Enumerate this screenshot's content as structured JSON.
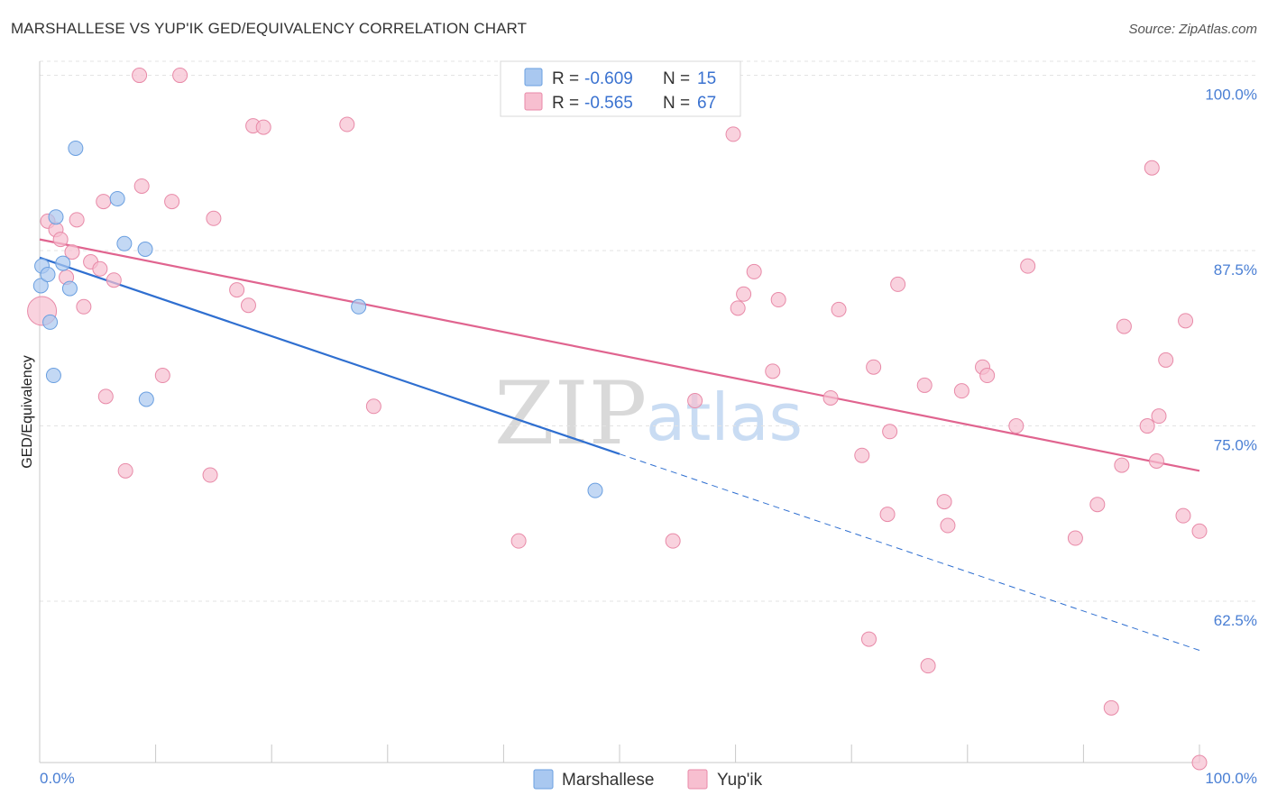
{
  "title": "MARSHALLESE VS YUP'IK GED/EQUIVALENCY CORRELATION CHART",
  "source": "Source: ZipAtlas.com",
  "watermark": {
    "zip": "ZIP",
    "atlas": "atlas"
  },
  "colors": {
    "blue": "#a9c8f0",
    "blue_stroke": "#6a9fe0",
    "blue_line": "#2f6fd0",
    "pink": "#f7bfd0",
    "pink_stroke": "#e88aa8",
    "pink_line": "#e0648f",
    "tick": "#4a7fd4",
    "grid": "#e3e3e3"
  },
  "legend": {
    "rows": [
      {
        "r_label": "R =",
        "r_value": "-0.609",
        "n_label": "N =",
        "n_value": "15"
      },
      {
        "r_label": "R =",
        "r_value": "-0.565",
        "n_label": "N =",
        "n_value": "67"
      }
    ]
  },
  "chart_data": {
    "type": "scatter",
    "title": "MARSHALLESE VS YUP'IK GED/EQUIVALENCY CORRELATION CHART",
    "xlabel": "",
    "ylabel": "GED/Equivalency",
    "xlim": [
      0,
      100
    ],
    "ylim": [
      51,
      101
    ],
    "x_tick_labels": [
      "0.0%",
      "100.0%"
    ],
    "y_ticks": [
      62.5,
      75.0,
      87.5,
      100.0
    ],
    "y_tick_labels": [
      "62.5%",
      "75.0%",
      "87.5%",
      "100.0%"
    ],
    "grid": true,
    "series": [
      {
        "name": "Marshallese",
        "color": "#a9c8f0",
        "points": [
          [
            0.2,
            86.4
          ],
          [
            0.1,
            85.0
          ],
          [
            0.7,
            85.8
          ],
          [
            0.9,
            82.4
          ],
          [
            1.2,
            78.6
          ],
          [
            1.4,
            89.9
          ],
          [
            2.0,
            86.6
          ],
          [
            2.6,
            84.8
          ],
          [
            3.1,
            94.8
          ],
          [
            6.7,
            91.2
          ],
          [
            7.3,
            88.0
          ],
          [
            9.1,
            87.6
          ],
          [
            9.2,
            76.9
          ],
          [
            27.5,
            83.5
          ],
          [
            47.9,
            70.4
          ]
        ],
        "trend": {
          "x0": 0,
          "y0": 87.0,
          "x1": 50,
          "y1": 73.0,
          "dashed_to_x": 100,
          "dashed_to_y": 59.0
        }
      },
      {
        "name": "Yup'ik",
        "color": "#f7bfd0",
        "points": [
          [
            0.2,
            83.2
          ],
          [
            0.7,
            89.6
          ],
          [
            1.4,
            89.0
          ],
          [
            1.8,
            88.3
          ],
          [
            2.3,
            85.6
          ],
          [
            2.8,
            87.4
          ],
          [
            3.2,
            89.7
          ],
          [
            3.8,
            83.5
          ],
          [
            4.4,
            86.7
          ],
          [
            5.2,
            86.2
          ],
          [
            5.5,
            91.0
          ],
          [
            5.7,
            77.1
          ],
          [
            6.4,
            85.4
          ],
          [
            7.4,
            71.8
          ],
          [
            8.6,
            100.0
          ],
          [
            8.8,
            92.1
          ],
          [
            11.4,
            91.0
          ],
          [
            12.1,
            100.0
          ],
          [
            10.6,
            78.6
          ],
          [
            14.7,
            71.5
          ],
          [
            15.0,
            89.8
          ],
          [
            17.0,
            84.7
          ],
          [
            18.0,
            83.6
          ],
          [
            18.4,
            96.4
          ],
          [
            19.3,
            96.3
          ],
          [
            26.5,
            96.5
          ],
          [
            28.8,
            76.4
          ],
          [
            41.3,
            66.8
          ],
          [
            54.6,
            66.8
          ],
          [
            56.5,
            76.8
          ],
          [
            59.8,
            95.8
          ],
          [
            60.2,
            83.4
          ],
          [
            60.7,
            84.4
          ],
          [
            61.6,
            86.0
          ],
          [
            63.7,
            84.0
          ],
          [
            63.2,
            78.9
          ],
          [
            68.2,
            77.0
          ],
          [
            68.9,
            83.3
          ],
          [
            70.9,
            72.9
          ],
          [
            71.5,
            59.8
          ],
          [
            71.9,
            79.2
          ],
          [
            73.1,
            68.7
          ],
          [
            73.3,
            74.6
          ],
          [
            74.0,
            85.1
          ],
          [
            76.6,
            57.9
          ],
          [
            76.3,
            77.9
          ],
          [
            78.0,
            69.6
          ],
          [
            78.3,
            67.9
          ],
          [
            79.5,
            77.5
          ],
          [
            81.3,
            79.2
          ],
          [
            81.7,
            78.6
          ],
          [
            84.2,
            75.0
          ],
          [
            85.2,
            86.4
          ],
          [
            89.3,
            67.0
          ],
          [
            91.2,
            69.4
          ],
          [
            92.4,
            54.9
          ],
          [
            93.3,
            72.2
          ],
          [
            93.5,
            82.1
          ],
          [
            95.5,
            75.0
          ],
          [
            95.9,
            93.4
          ],
          [
            96.5,
            75.7
          ],
          [
            96.3,
            72.5
          ],
          [
            97.1,
            79.7
          ],
          [
            98.6,
            68.6
          ],
          [
            98.8,
            82.5
          ],
          [
            100.0,
            67.5
          ],
          [
            100.0,
            51.0
          ]
        ],
        "trend": {
          "x0": 0,
          "y0": 88.3,
          "x1": 100,
          "y1": 71.8
        }
      }
    ]
  }
}
